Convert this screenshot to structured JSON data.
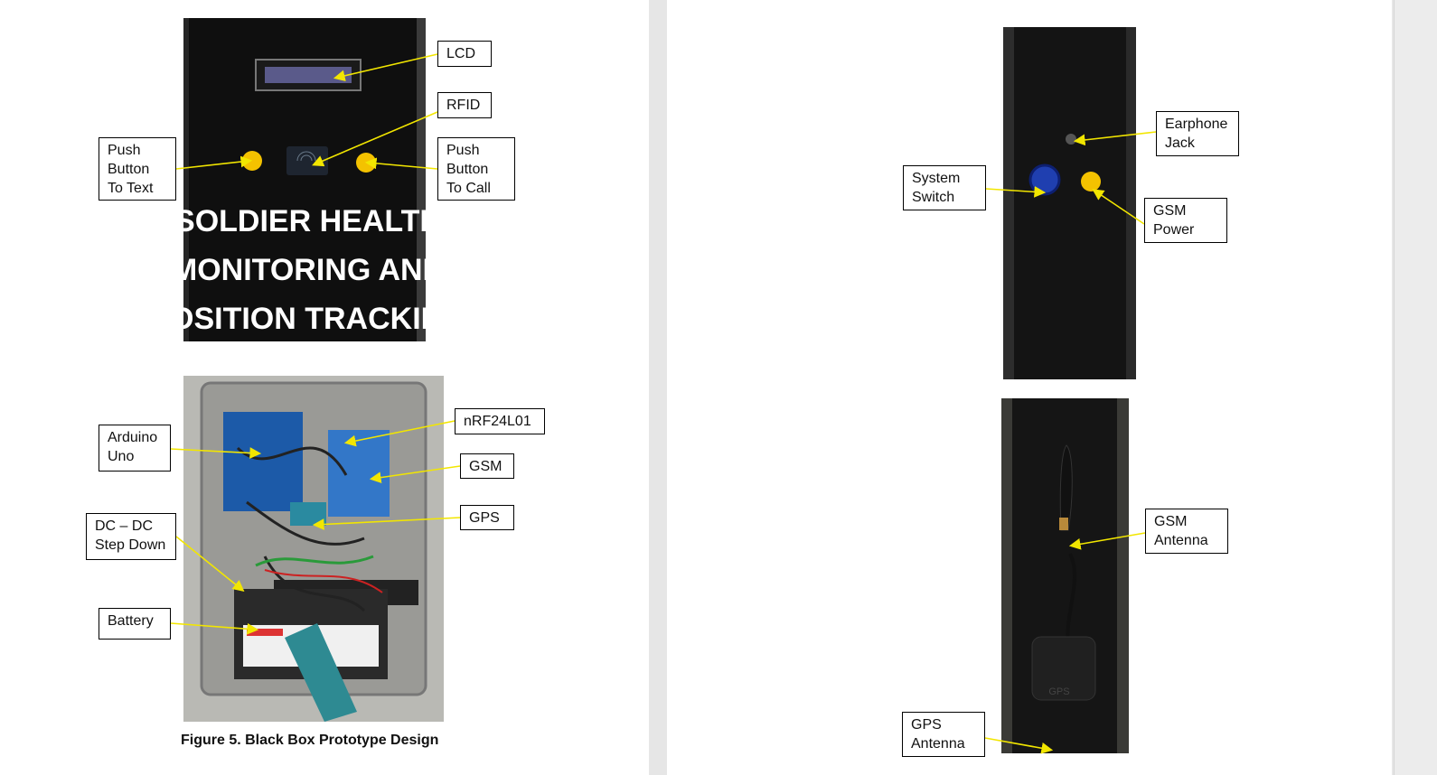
{
  "caption": "Figure 5. Black Box Prototype Design",
  "photo_text": {
    "front_panel_print": [
      "SOLDIER HEALTH",
      "MONITORING AND",
      "POSITION TRACKING"
    ],
    "antenna_mark": "GPS"
  },
  "labels": {
    "lcd": "LCD",
    "rfid": "RFID",
    "push_text": "Push\nButton\nTo Text",
    "push_call": "Push\nButton\nTo Call",
    "arduino": "Arduino\nUno",
    "nrf": "nRF24L01",
    "gsm": "GSM",
    "gps": "GPS",
    "dcdc": "DC – DC\nStep Down",
    "battery": "Battery",
    "earphone": "Earphone\nJack",
    "system_switch": "System\nSwitch",
    "gsm_power": "GSM\nPower",
    "gsm_antenna": "GSM\nAntenna",
    "gps_antenna": "GPS\nAntenna"
  },
  "colors": {
    "leader_line": "#f2e600",
    "box_body": "#0d0d0d",
    "button_yellow": "#f4c200",
    "switch_blue": "#1f3fb0"
  }
}
